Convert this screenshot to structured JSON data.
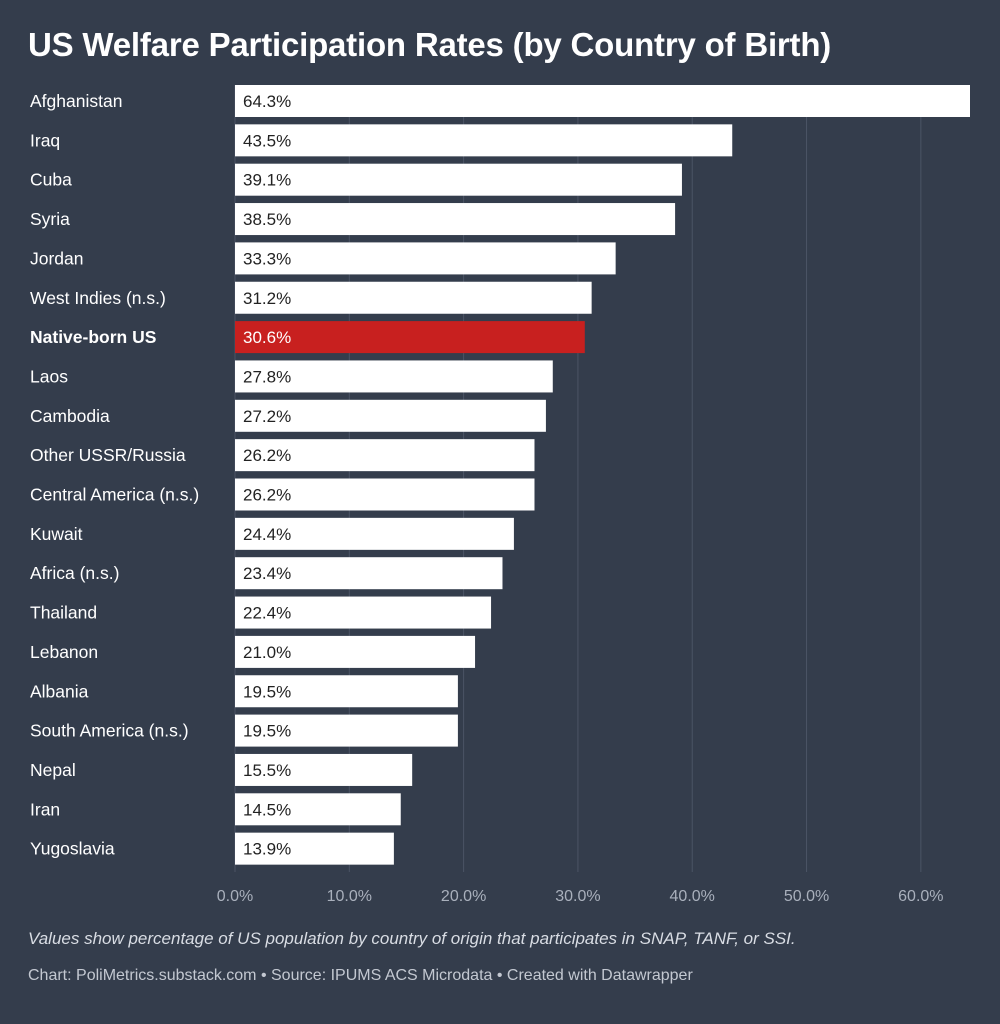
{
  "colors": {
    "background": "#343d4c",
    "bar": "#ffffff",
    "highlight": "#c8201f",
    "grid": "#4b5465",
    "tick_text": "#a9b0bc",
    "category_text": "#ffffff",
    "value_text": "#222222",
    "highlight_value_text": "#ffffff"
  },
  "chart_data": {
    "type": "bar",
    "orientation": "horizontal",
    "title": "US Welfare Participation Rates (by Country of Birth)",
    "categories": [
      "Afghanistan",
      "Iraq",
      "Cuba",
      "Syria",
      "Jordan",
      "West Indies (n.s.)",
      "Native-born US",
      "Laos",
      "Cambodia",
      "Other USSR/Russia",
      "Central America (n.s.)",
      "Kuwait",
      "Africa (n.s.)",
      "Thailand",
      "Lebanon",
      "Albania",
      "South America (n.s.)",
      "Nepal",
      "Iran",
      "Yugoslavia"
    ],
    "values": [
      64.3,
      43.5,
      39.1,
      38.5,
      33.3,
      31.2,
      30.6,
      27.8,
      27.2,
      26.2,
      26.2,
      24.4,
      23.4,
      22.4,
      21.0,
      19.5,
      19.5,
      15.5,
      14.5,
      13.9
    ],
    "value_labels": [
      "64.3%",
      "43.5%",
      "39.1%",
      "38.5%",
      "33.3%",
      "31.2%",
      "30.6%",
      "27.8%",
      "27.2%",
      "26.2%",
      "26.2%",
      "24.4%",
      "23.4%",
      "22.4%",
      "21.0%",
      "19.5%",
      "19.5%",
      "15.5%",
      "14.5%",
      "13.9%"
    ],
    "highlight_category": "Native-born US",
    "xlim": [
      0,
      64.3
    ],
    "xticks": [
      0,
      10,
      20,
      30,
      40,
      50,
      60
    ],
    "xtick_labels": [
      "0.0%",
      "10.0%",
      "20.0%",
      "30.0%",
      "40.0%",
      "50.0%",
      "60.0%"
    ],
    "grid": true,
    "legend": "none"
  },
  "note": "Values show percentage of US population by country of origin that participates in SNAP, TANF, or SSI.",
  "credit": "Chart: PoliMetrics.substack.com • Source: IPUMS ACS Microdata • Created with Datawrapper"
}
